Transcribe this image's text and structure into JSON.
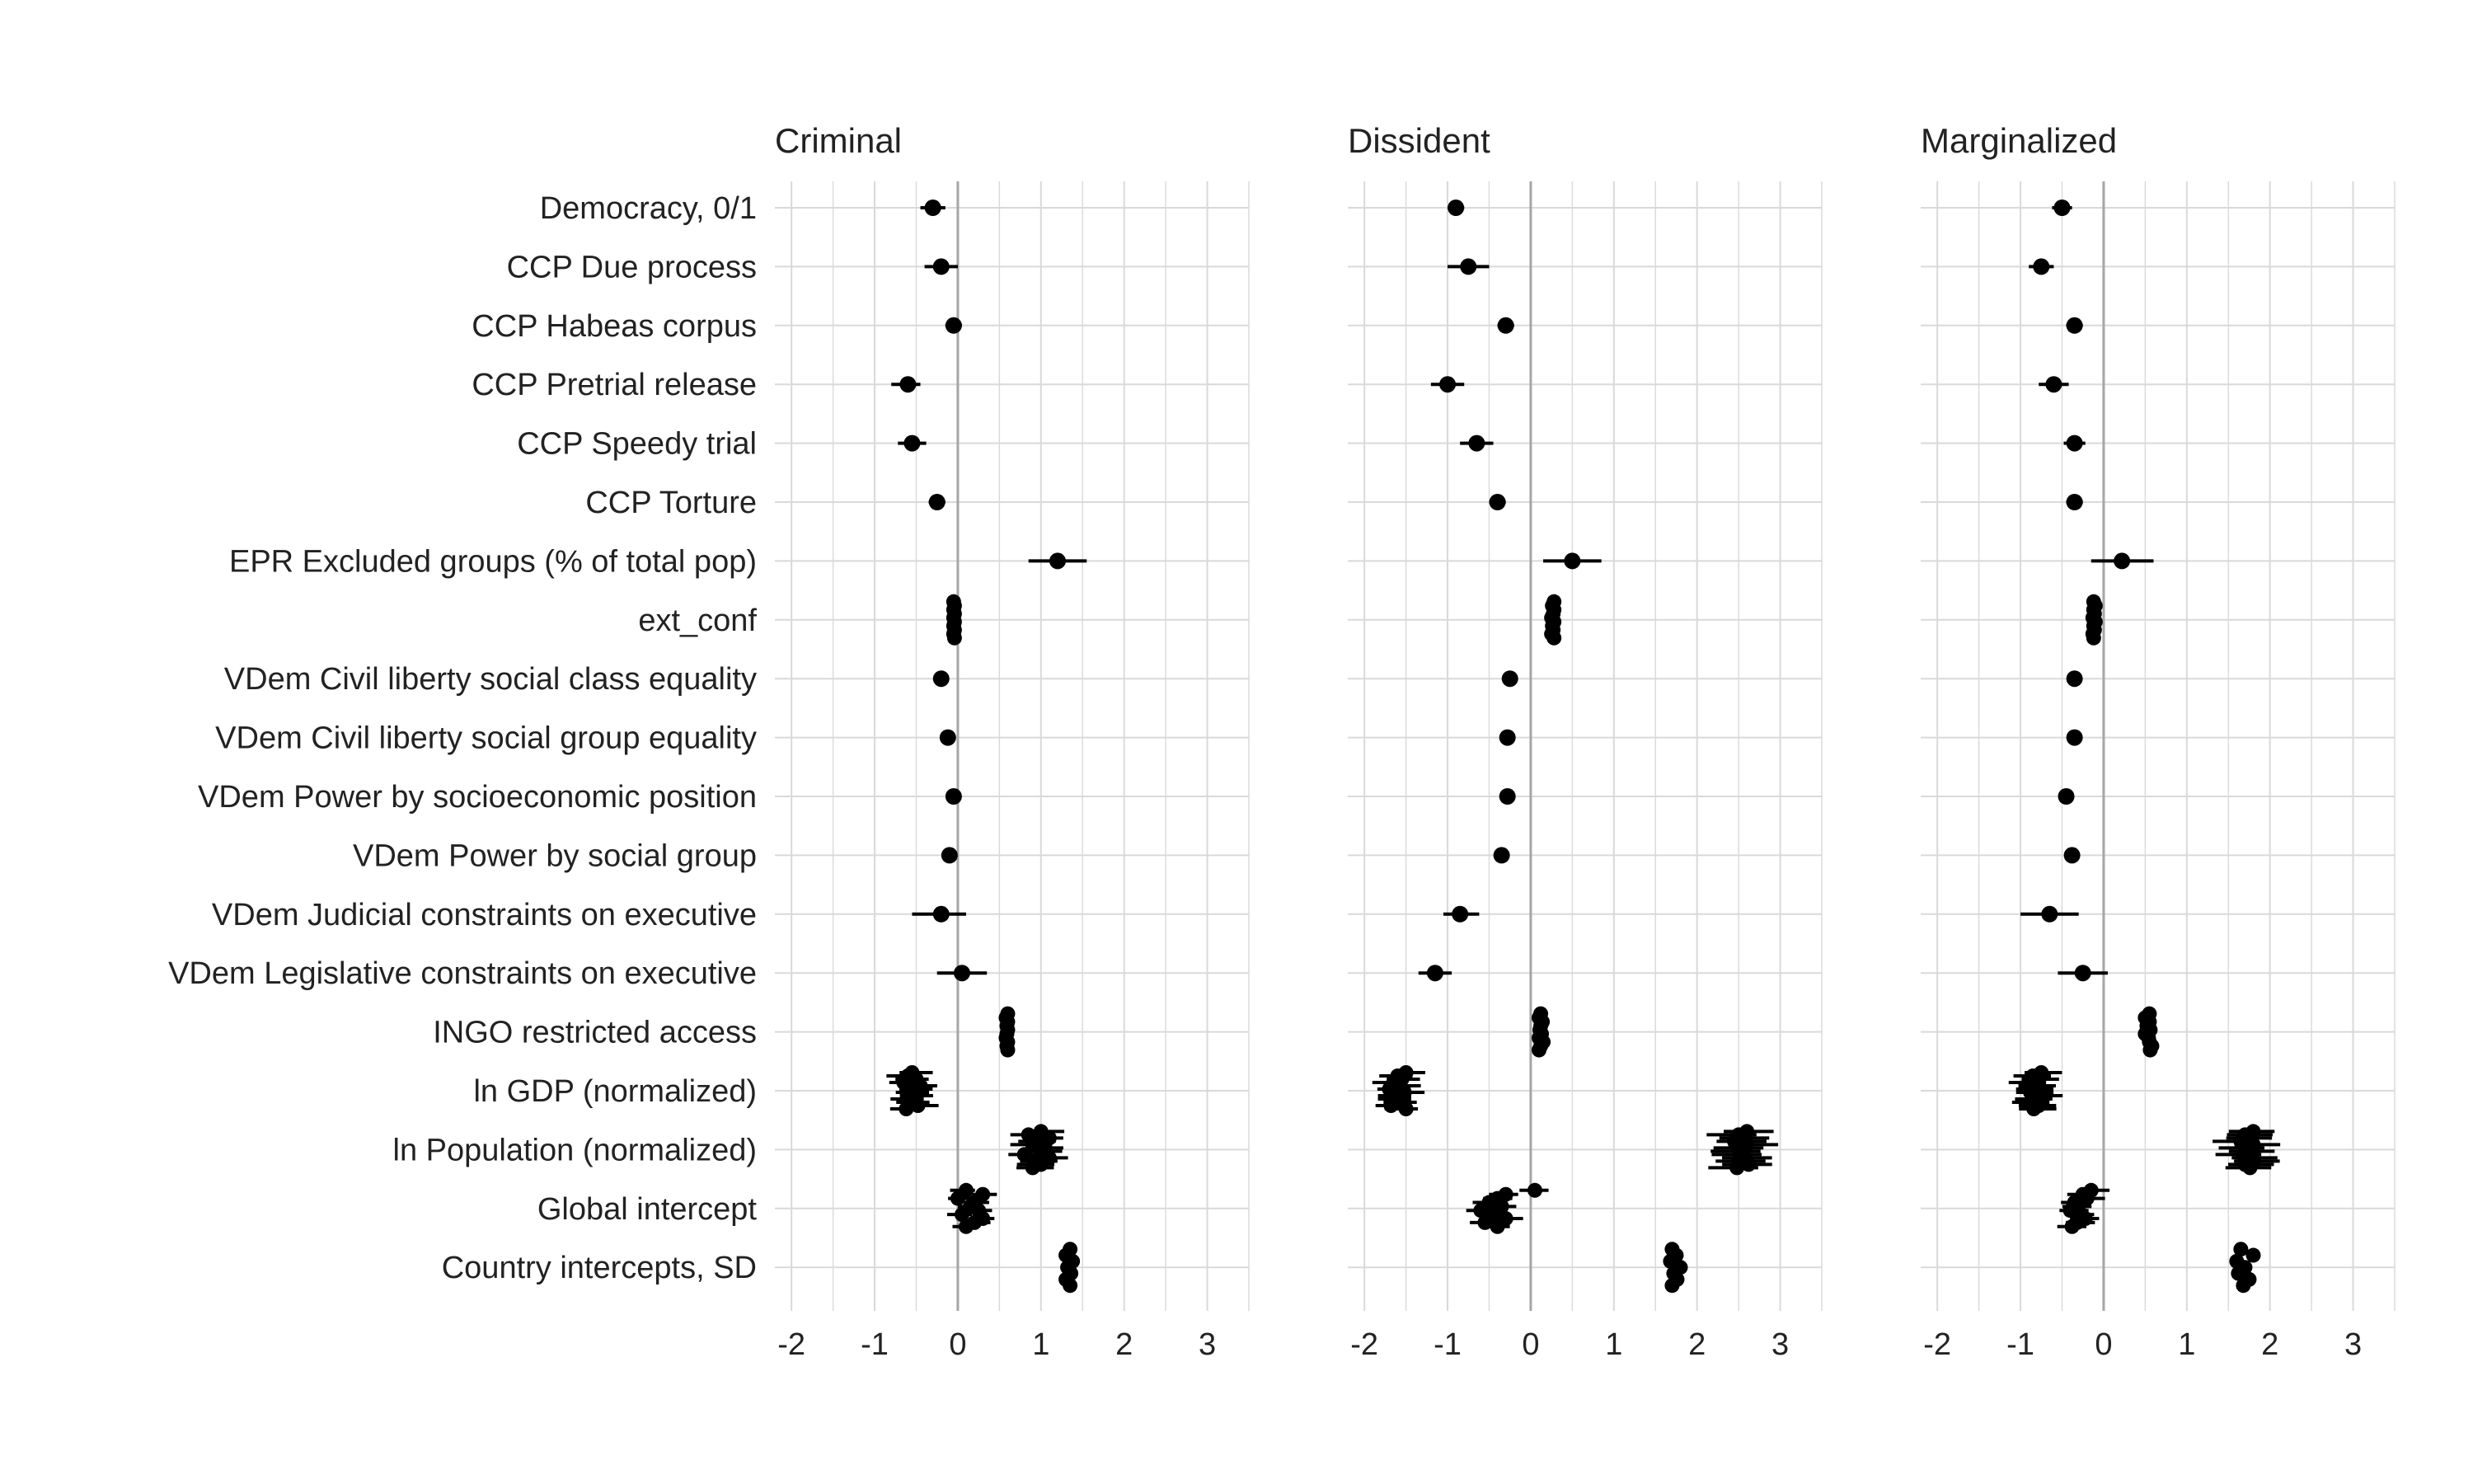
{
  "chart_data": {
    "type": "coefficient_plot",
    "xlim": [
      -2.2,
      3.5
    ],
    "xticks": [
      -2,
      -1,
      0,
      1,
      2,
      3
    ],
    "xtick_labels": [
      "-2",
      "-1",
      "0",
      "1",
      "2",
      "3"
    ],
    "reference_line": 0,
    "grid": true,
    "marker_color": "#000000",
    "variables": [
      "Democracy, 0/1",
      "CCP Due process",
      "CCP Habeas corpus",
      "CCP Pretrial release",
      "CCP Speedy trial",
      "CCP Torture",
      "EPR Excluded groups (% of total pop)",
      "ext_conf",
      "VDem Civil liberty social class equality",
      "VDem Civil liberty social group equality",
      "VDem Power by socioeconomic position",
      "VDem Power by social group",
      "VDem Judicial constraints on executive",
      "VDem Legislative constraints on executive",
      "INGO restricted access",
      "ln GDP (normalized)",
      "ln Population (normalized)",
      "Global intercept",
      "Country intercepts, SD"
    ],
    "panels": [
      {
        "title": "Criminal",
        "estimates": [
          {
            "est": -0.3,
            "lo": -0.45,
            "hi": -0.15
          },
          {
            "est": -0.2,
            "lo": -0.4,
            "hi": 0.0
          },
          {
            "est": -0.05,
            "lo": -0.15,
            "hi": 0.05
          },
          {
            "est": -0.6,
            "lo": -0.8,
            "hi": -0.45
          },
          {
            "est": -0.55,
            "lo": -0.72,
            "hi": -0.38
          },
          {
            "est": -0.25,
            "lo": -0.35,
            "hi": -0.15
          },
          {
            "est": 1.2,
            "lo": 0.85,
            "hi": 1.55
          },
          {
            "group": [
              -0.05,
              -0.04,
              -0.05,
              -0.04,
              -0.05,
              -0.04,
              -0.05,
              -0.04,
              -0.05,
              -0.04
            ],
            "spread": 0.05
          },
          {
            "est": -0.2,
            "lo": -0.28,
            "hi": -0.12
          },
          {
            "est": -0.12,
            "lo": -0.19,
            "hi": -0.05
          },
          {
            "est": -0.05,
            "lo": -0.11,
            "hi": 0.01
          },
          {
            "est": -0.1,
            "lo": -0.17,
            "hi": -0.03
          },
          {
            "est": -0.2,
            "lo": -0.55,
            "hi": 0.1
          },
          {
            "est": 0.05,
            "lo": -0.25,
            "hi": 0.35
          },
          {
            "group": [
              0.6,
              0.58,
              0.6,
              0.59,
              0.6,
              0.59,
              0.58,
              0.6,
              0.59,
              0.6
            ],
            "spread": 0.06
          },
          {
            "group": [
              -0.55,
              -0.6,
              -0.5,
              -0.65,
              -0.45,
              -0.55,
              -0.6,
              -0.5,
              -0.58,
              -0.52,
              -0.48,
              -0.62
            ],
            "spread": 0.4
          },
          {
            "group": [
              1.0,
              0.85,
              1.1,
              0.95,
              0.9,
              1.05,
              1.0,
              0.8,
              1.1,
              0.95,
              1.0,
              0.9
            ],
            "spread": 0.45
          },
          {
            "group": [
              0.1,
              0.3,
              0.0,
              0.2,
              0.15,
              0.25,
              0.05,
              0.3,
              0.2,
              0.1
            ],
            "spread": 0.3
          },
          {
            "group": [
              1.35,
              1.3,
              1.38,
              1.32,
              1.36,
              1.3,
              1.35
            ],
            "spread": 0.04
          }
        ]
      },
      {
        "title": "Dissident",
        "estimates": [
          {
            "est": -0.9,
            "lo": -1.0,
            "hi": -0.8
          },
          {
            "est": -0.75,
            "lo": -1.0,
            "hi": -0.5
          },
          {
            "est": -0.3,
            "lo": -0.4,
            "hi": -0.2
          },
          {
            "est": -1.0,
            "lo": -1.2,
            "hi": -0.8
          },
          {
            "est": -0.65,
            "lo": -0.85,
            "hi": -0.45
          },
          {
            "est": -0.4,
            "lo": -0.5,
            "hi": -0.3
          },
          {
            "est": 0.5,
            "lo": 0.15,
            "hi": 0.85
          },
          {
            "group": [
              0.28,
              0.26,
              0.28,
              0.27,
              0.25,
              0.28,
              0.26,
              0.27,
              0.25,
              0.28
            ],
            "spread": 0.05
          },
          {
            "est": -0.25,
            "lo": -0.33,
            "hi": -0.17
          },
          {
            "est": -0.28,
            "lo": -0.35,
            "hi": -0.21
          },
          {
            "est": -0.28,
            "lo": -0.35,
            "hi": -0.21
          },
          {
            "est": -0.35,
            "lo": -0.43,
            "hi": -0.27
          },
          {
            "est": -0.85,
            "lo": -1.05,
            "hi": -0.62
          },
          {
            "est": -1.15,
            "lo": -1.35,
            "hi": -0.95
          },
          {
            "group": [
              0.12,
              0.1,
              0.14,
              0.12,
              0.11,
              0.13,
              0.1,
              0.15,
              0.12,
              0.1
            ],
            "spread": 0.07
          },
          {
            "group": [
              -1.5,
              -1.6,
              -1.55,
              -1.65,
              -1.58,
              -1.7,
              -1.52,
              -1.62,
              -1.6,
              -1.55,
              -1.68,
              -1.5
            ],
            "spread": 0.4
          },
          {
            "group": [
              2.6,
              2.5,
              2.55,
              2.45,
              2.6,
              2.5,
              2.55,
              2.52,
              2.58,
              2.5,
              2.62,
              2.48
            ],
            "spread": 0.6
          },
          {
            "group": [
              0.05,
              -0.3,
              -0.4,
              -0.5,
              -0.35,
              -0.6,
              -0.45,
              -0.3,
              -0.55,
              -0.4
            ],
            "spread": 0.35
          },
          {
            "group": [
              1.7,
              1.75,
              1.68,
              1.8,
              1.72,
              1.76,
              1.7
            ],
            "spread": 0.05
          }
        ]
      },
      {
        "title": "Marginalized",
        "estimates": [
          {
            "est": -0.5,
            "lo": -0.62,
            "hi": -0.38
          },
          {
            "est": -0.75,
            "lo": -0.9,
            "hi": -0.6
          },
          {
            "est": -0.35,
            "lo": -0.45,
            "hi": -0.25
          },
          {
            "est": -0.6,
            "lo": -0.78,
            "hi": -0.42
          },
          {
            "est": -0.35,
            "lo": -0.48,
            "hi": -0.22
          },
          {
            "est": -0.35,
            "lo": -0.45,
            "hi": -0.25
          },
          {
            "est": 0.22,
            "lo": -0.15,
            "hi": 0.6
          },
          {
            "group": [
              -0.12,
              -0.1,
              -0.12,
              -0.11,
              -0.13,
              -0.1,
              -0.12,
              -0.11,
              -0.13,
              -0.12
            ],
            "spread": 0.05
          },
          {
            "est": -0.35,
            "lo": -0.43,
            "hi": -0.27
          },
          {
            "est": -0.35,
            "lo": -0.43,
            "hi": -0.27
          },
          {
            "est": -0.45,
            "lo": -0.53,
            "hi": -0.37
          },
          {
            "est": -0.38,
            "lo": -0.46,
            "hi": -0.3
          },
          {
            "est": -0.65,
            "lo": -1.0,
            "hi": -0.3
          },
          {
            "est": -0.25,
            "lo": -0.55,
            "hi": 0.05
          },
          {
            "group": [
              0.55,
              0.5,
              0.55,
              0.52,
              0.56,
              0.5,
              0.54,
              0.55,
              0.58,
              0.56
            ],
            "spread": 0.07
          },
          {
            "group": [
              -0.75,
              -0.85,
              -0.8,
              -0.9,
              -0.78,
              -0.82,
              -0.88,
              -0.75,
              -0.8,
              -0.86,
              -0.78,
              -0.84
            ],
            "spread": 0.45
          },
          {
            "group": [
              1.8,
              1.7,
              1.75,
              1.65,
              1.8,
              1.72,
              1.78,
              1.68,
              1.75,
              1.8,
              1.7,
              1.76
            ],
            "spread": 0.55
          },
          {
            "group": [
              -0.15,
              -0.25,
              -0.2,
              -0.35,
              -0.3,
              -0.4,
              -0.28,
              -0.22,
              -0.32,
              -0.38
            ],
            "spread": 0.35
          },
          {
            "group": [
              1.65,
              1.8,
              1.6,
              1.7,
              1.62,
              1.75,
              1.68
            ],
            "spread": 0.05
          }
        ]
      }
    ]
  }
}
